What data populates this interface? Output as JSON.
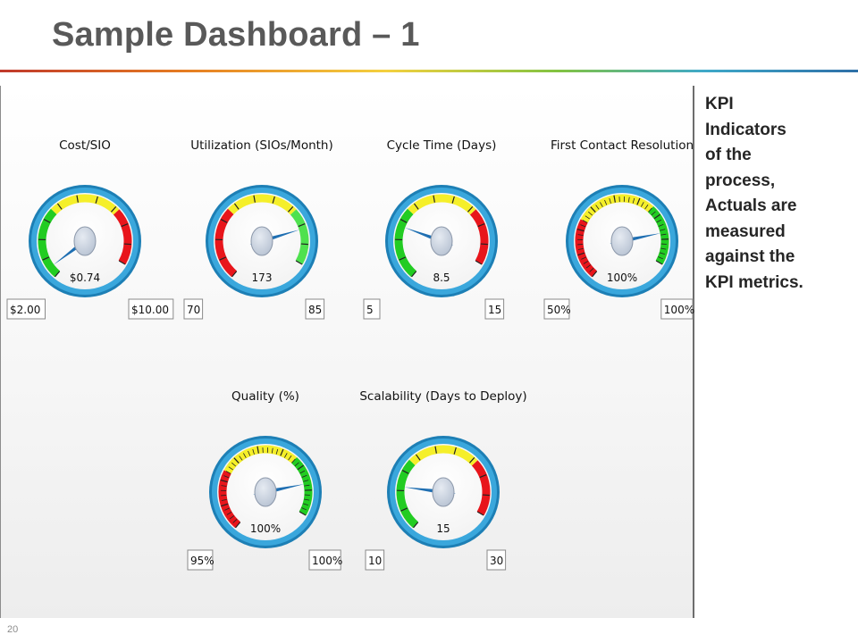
{
  "slide": {
    "title": "Sample Dashboard – 1",
    "page_number": "20",
    "accent_colors": [
      "#c0392b",
      "#e67e22",
      "#f4d03f",
      "#82c341",
      "#3fa9c9",
      "#2e6fa7"
    ]
  },
  "side_note": {
    "lines": [
      "KPI",
      "Indicators",
      "of the",
      "process,",
      "Actuals are",
      "measured",
      "against the",
      "KPI metrics."
    ]
  },
  "gauges": [
    {
      "title": "Cost/SIO",
      "value": "$0.74",
      "min": "$2.00",
      "max": "$10.00",
      "needle_fraction": 0.05,
      "bands": [
        {
          "color": "#22cc22",
          "from": 0.0,
          "to": 0.36
        },
        {
          "color": "#f5ef2a",
          "from": 0.36,
          "to": 0.72
        },
        {
          "color": "#e8151b",
          "from": 0.72,
          "to": 1.0
        }
      ],
      "ticks": 10
    },
    {
      "title": "Utilization (SIOs/Month)",
      "value": "173",
      "min": "70",
      "max": "85",
      "needle_fraction": 0.82,
      "bands": [
        {
          "color": "#e8151b",
          "from": 0.0,
          "to": 0.36
        },
        {
          "color": "#f5ef2a",
          "from": 0.36,
          "to": 0.72
        },
        {
          "color": "#4fe14f",
          "from": 0.72,
          "to": 1.0
        }
      ],
      "ticks": 10
    },
    {
      "title": "Cycle Time (Days)",
      "value": "8.5",
      "min": "5",
      "max": "15",
      "needle_fraction": 0.27,
      "bands": [
        {
          "color": "#22cc22",
          "from": 0.0,
          "to": 0.36
        },
        {
          "color": "#f5ef2a",
          "from": 0.36,
          "to": 0.72
        },
        {
          "color": "#e8151b",
          "from": 0.72,
          "to": 1.0
        }
      ],
      "ticks": 10
    },
    {
      "title": "First Contact Resolution",
      "value": "100%",
      "min": "50%",
      "max": "100%",
      "needle_fraction": 0.84,
      "bands": [
        {
          "color": "#e8151b",
          "from": 0.0,
          "to": 0.3
        },
        {
          "color": "#f5ef2a",
          "from": 0.3,
          "to": 0.7
        },
        {
          "color": "#22cc22",
          "from": 0.7,
          "to": 1.0
        }
      ],
      "ticks": 40
    },
    {
      "title": "Quality (%)",
      "value": "100%",
      "min": "95%",
      "max": "100%",
      "needle_fraction": 0.84,
      "bands": [
        {
          "color": "#e8151b",
          "from": 0.0,
          "to": 0.3
        },
        {
          "color": "#f5ef2a",
          "from": 0.3,
          "to": 0.7
        },
        {
          "color": "#22cc22",
          "from": 0.7,
          "to": 1.0
        }
      ],
      "ticks": 40
    },
    {
      "title": "Scalability (Days to Deploy)",
      "value": "15",
      "min": "10",
      "max": "30",
      "needle_fraction": 0.22,
      "bands": [
        {
          "color": "#22cc22",
          "from": 0.0,
          "to": 0.36
        },
        {
          "color": "#f5ef2a",
          "from": 0.36,
          "to": 0.72
        },
        {
          "color": "#e8151b",
          "from": 0.72,
          "to": 1.0
        }
      ],
      "ticks": 10
    }
  ],
  "gauge_style": {
    "bezel_color": "#3aa7dc",
    "face_color": "#f2f2f2",
    "needle_color": "#1f6fb2",
    "hub_color": "#b8c3d3",
    "box_border_color": "#8a8a8a",
    "box_fill_color": "#ffffff"
  }
}
